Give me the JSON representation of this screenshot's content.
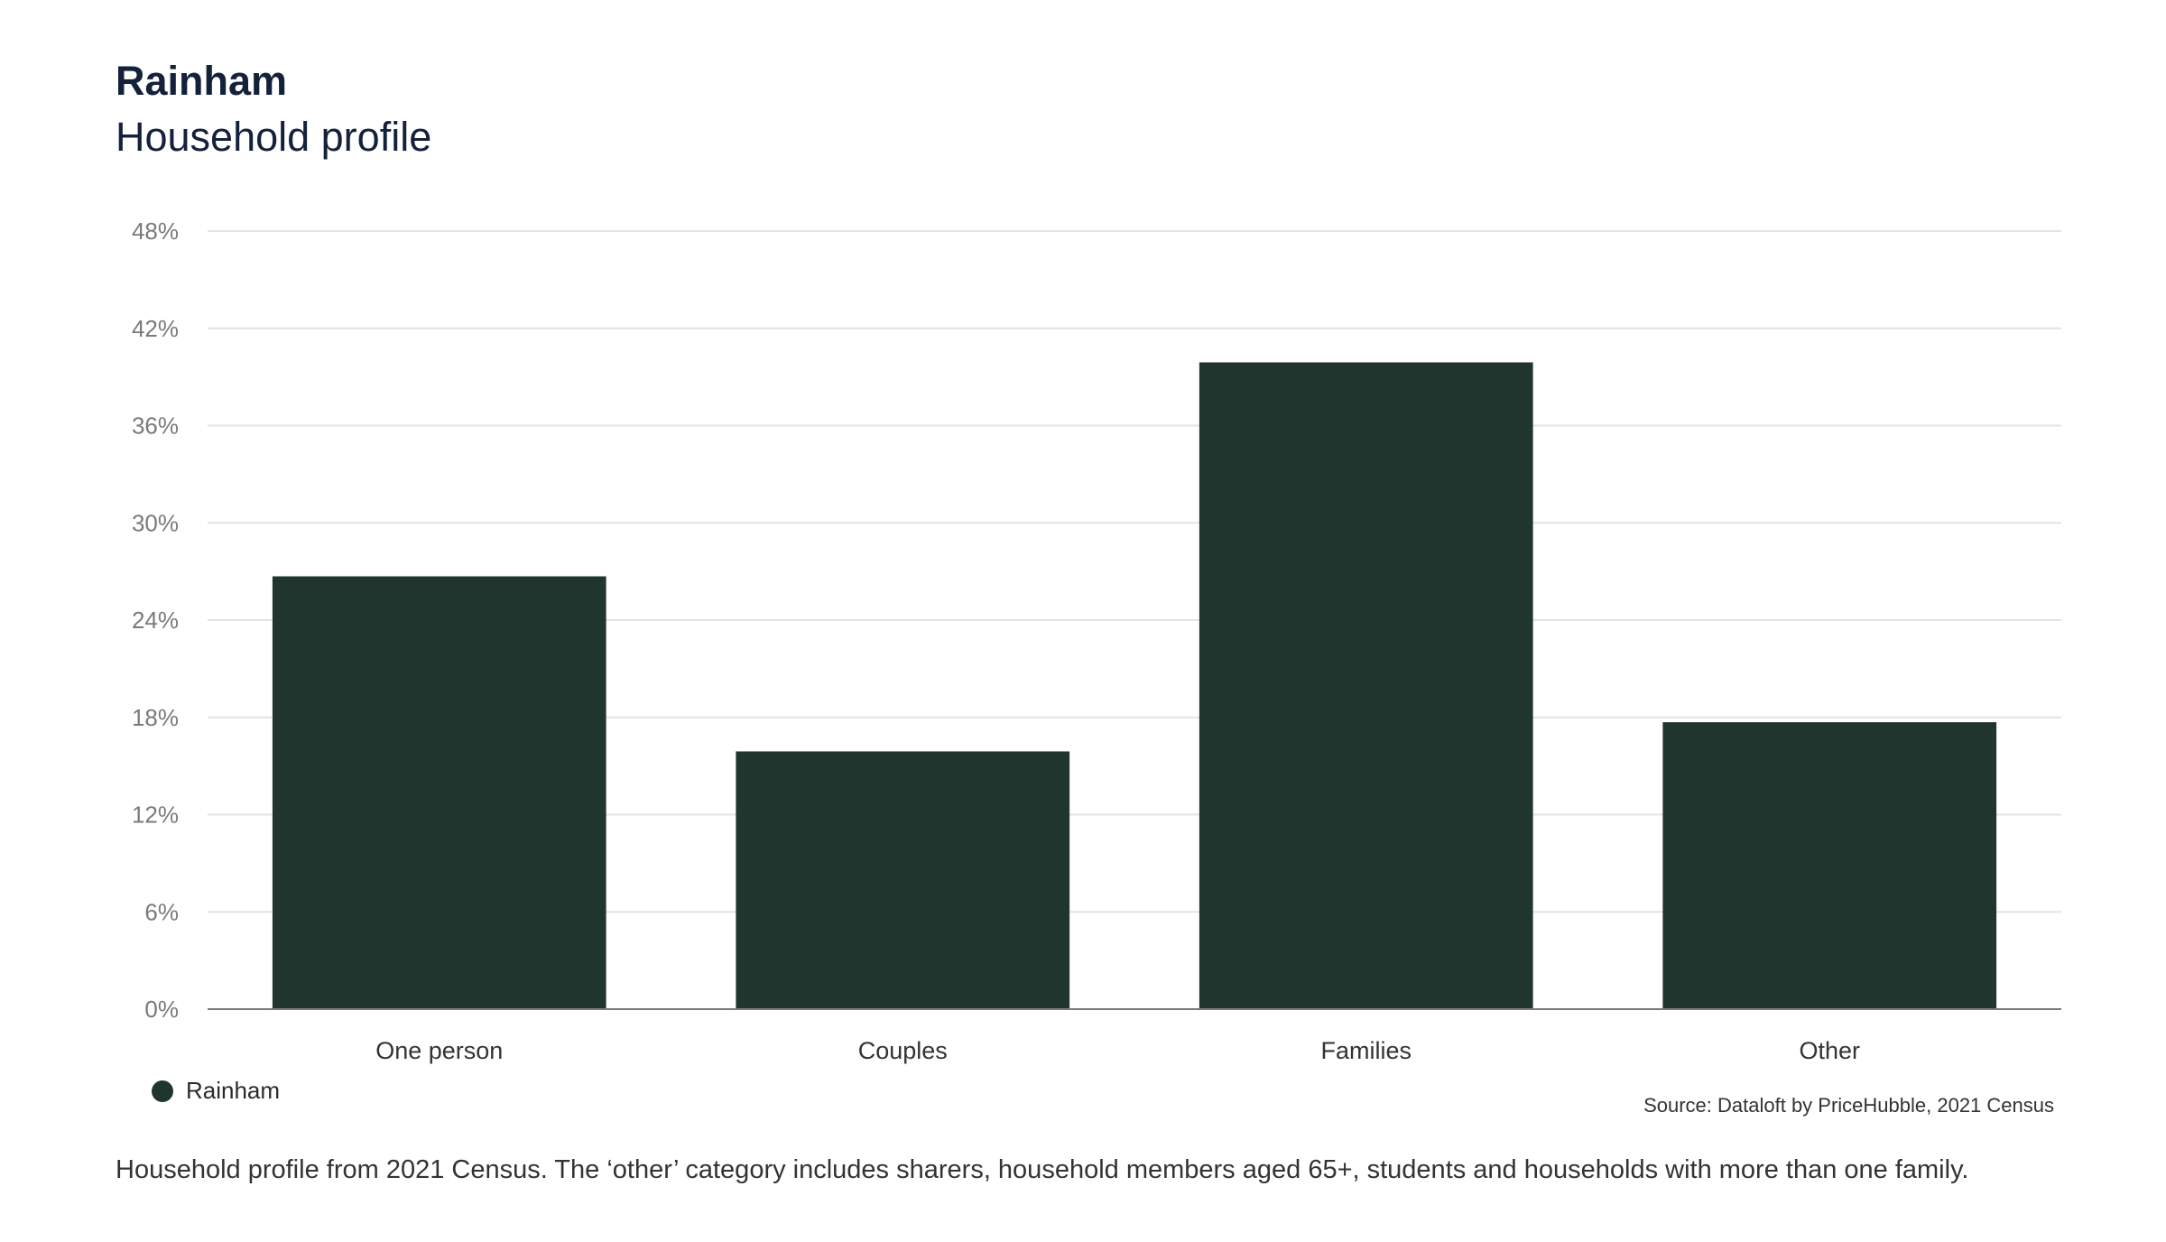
{
  "header": {
    "title": "Rainham",
    "subtitle": "Household profile"
  },
  "colors": {
    "bar": "#21352f",
    "grid": "#e3e3e3",
    "axis": "#7a7a7a",
    "tick_text": "#7a7a7a",
    "category_text": "#333333"
  },
  "legend": {
    "label": "Rainham",
    "icon": "circle-legend-swatch"
  },
  "source": "Source: Dataloft by PriceHubble, 2021 Census",
  "footnote": "Household profile from 2021 Census. The ‘other’ category includes sharers, household members aged 65+, students and households with more than one family.",
  "chart_data": {
    "type": "bar",
    "title": "Rainham",
    "subtitle": "Household profile",
    "categories": [
      "One person",
      "Couples",
      "Families",
      "Other"
    ],
    "series": [
      {
        "name": "Rainham",
        "values": [
          26.7,
          15.9,
          39.9,
          17.7
        ]
      }
    ],
    "ylim": [
      0,
      48
    ],
    "yticks": [
      0,
      6,
      12,
      18,
      24,
      30,
      36,
      42,
      48
    ],
    "ytick_labels": [
      "0%",
      "6%",
      "12%",
      "18%",
      "24%",
      "30%",
      "36%",
      "42%",
      "48%"
    ],
    "xlabel": "",
    "ylabel": "",
    "grid": true,
    "legend_position": "bottom-left"
  }
}
